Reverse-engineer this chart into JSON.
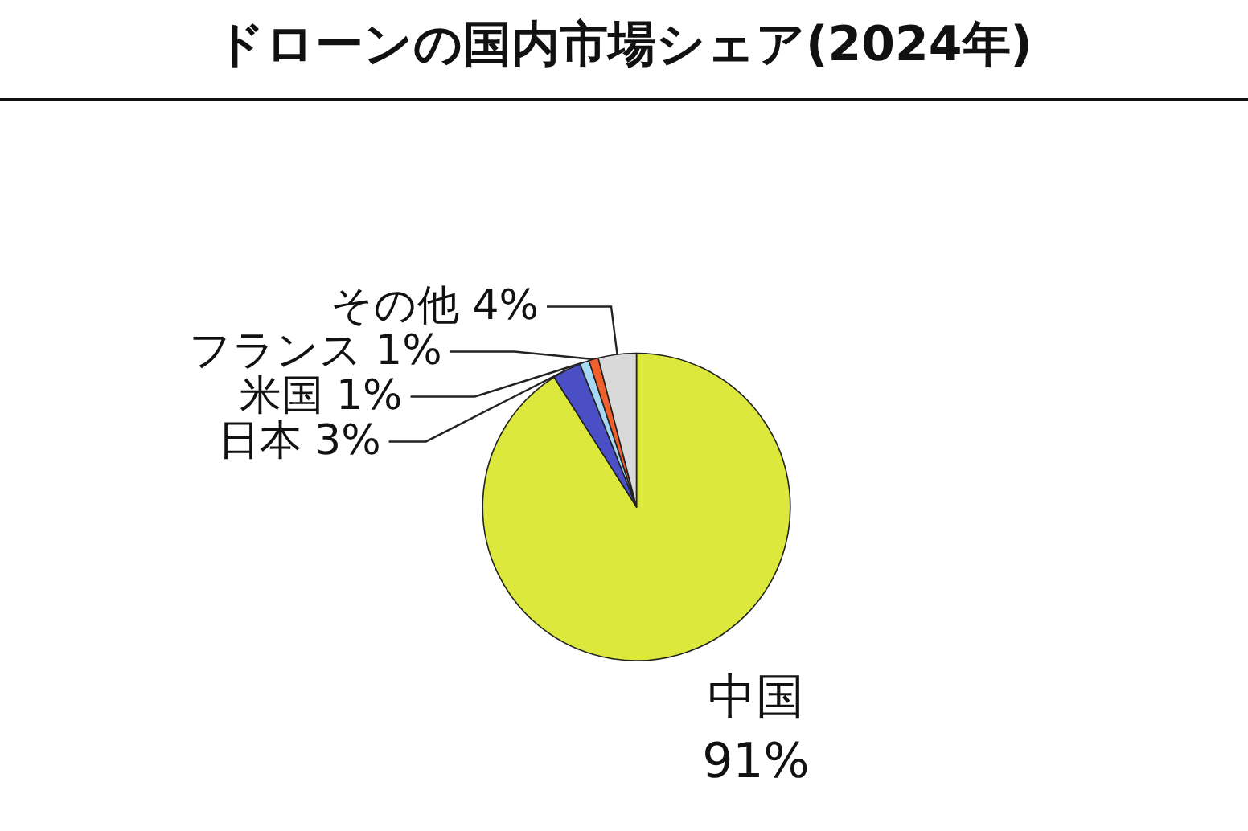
{
  "chart_data": {
    "type": "pie",
    "title": "ドローンの国内市場シェア(2024年)",
    "categories": [
      "中国",
      "日本",
      "米国",
      "フランス",
      "その他"
    ],
    "values": [
      91,
      3,
      1,
      1,
      4
    ],
    "value_labels": [
      "91%",
      "3%",
      "1%",
      "1%",
      "4%"
    ],
    "colors": [
      "#dce83c",
      "#4b4fc6",
      "#a9d9f2",
      "#f0602c",
      "#d9d9d9"
    ],
    "legend": false
  }
}
